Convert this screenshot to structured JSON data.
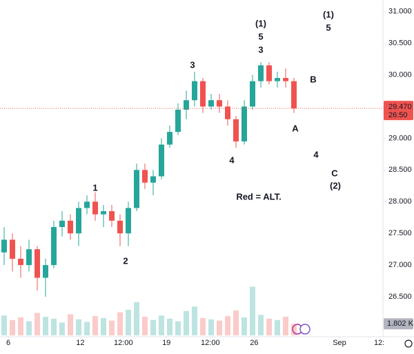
{
  "chart_data": {
    "type": "candlestick",
    "x": [
      0,
      1,
      2,
      3,
      4,
      5,
      6,
      7,
      8,
      9,
      10,
      11,
      12,
      13,
      14,
      15,
      16,
      17,
      18,
      19,
      20,
      21,
      22,
      23,
      24,
      25,
      26,
      27,
      28,
      29,
      30,
      31,
      32,
      33,
      34,
      35
    ],
    "open": [
      27.2,
      27.4,
      27.1,
      27.0,
      27.25,
      26.8,
      27.0,
      27.6,
      27.7,
      27.5,
      27.9,
      28.0,
      27.8,
      27.85,
      27.7,
      27.5,
      27.9,
      28.5,
      28.3,
      28.4,
      28.9,
      29.1,
      29.45,
      29.6,
      29.9,
      29.5,
      29.6,
      29.5,
      29.3,
      28.95,
      29.5,
      29.9,
      30.15,
      29.9,
      29.95,
      29.9
    ],
    "high": [
      27.6,
      27.5,
      27.3,
      27.4,
      27.3,
      27.1,
      27.7,
      27.85,
      27.8,
      28.0,
      28.1,
      28.15,
      27.95,
      27.95,
      27.8,
      28.0,
      28.6,
      28.6,
      28.5,
      29.0,
      29.2,
      29.55,
      29.75,
      30.05,
      29.95,
      29.7,
      29.7,
      29.6,
      29.35,
      29.6,
      30.0,
      30.2,
      30.2,
      30.05,
      30.1,
      29.95
    ],
    "low": [
      27.0,
      26.9,
      26.8,
      26.9,
      26.6,
      26.5,
      26.95,
      27.45,
      27.4,
      27.3,
      27.8,
      27.7,
      27.6,
      27.6,
      27.3,
      27.3,
      27.85,
      28.2,
      28.1,
      28.35,
      28.85,
      29.05,
      29.3,
      29.5,
      29.4,
      29.45,
      29.4,
      29.2,
      28.85,
      28.9,
      29.45,
      29.8,
      29.85,
      29.8,
      29.8,
      29.4
    ],
    "close": [
      27.4,
      27.1,
      27.0,
      27.25,
      26.8,
      27.0,
      27.6,
      27.7,
      27.5,
      27.9,
      28.0,
      27.8,
      27.85,
      27.7,
      27.5,
      27.9,
      28.5,
      28.3,
      28.4,
      28.9,
      29.1,
      29.45,
      29.6,
      29.9,
      29.5,
      29.6,
      29.5,
      29.3,
      28.95,
      29.5,
      29.9,
      30.15,
      29.9,
      29.95,
      29.9,
      29.47
    ],
    "volume": [
      3.1,
      2.4,
      2.8,
      2.2,
      3.5,
      2.9,
      2.6,
      2.0,
      3.3,
      2.5,
      2.1,
      3.0,
      2.7,
      2.3,
      3.6,
      4.0,
      5.2,
      2.9,
      2.4,
      3.1,
      2.6,
      2.2,
      3.8,
      4.5,
      2.7,
      2.5,
      2.3,
      3.0,
      3.9,
      2.8,
      7.6,
      3.2,
      2.6,
      2.4,
      2.9,
      1.802
    ],
    "volume_lim": [
      0,
      14
    ],
    "volume_label": "1.802 K",
    "up_color": "#26a69a",
    "down_color": "#ef5350",
    "xlim": [
      -0.5,
      45.75
    ],
    "xticks": [
      {
        "value": 0.5,
        "label": "6"
      },
      {
        "value": 9.2,
        "label": "12"
      },
      {
        "value": 14.4,
        "label": "12:00"
      },
      {
        "value": 19.6,
        "label": "19"
      },
      {
        "value": 24.9,
        "label": "12:00"
      },
      {
        "value": 30.2,
        "label": "26"
      },
      {
        "value": 40.5,
        "label": "Sep"
      },
      {
        "value": 45.3,
        "label": "12:"
      }
    ],
    "ylim": [
      25.87,
      31.18
    ],
    "yticks": [
      {
        "value": 26.5,
        "label": "26.500"
      },
      {
        "value": 27,
        "label": "27.000"
      },
      {
        "value": 27.5,
        "label": "27.500"
      },
      {
        "value": 28,
        "label": "28.000"
      },
      {
        "value": 28.5,
        "label": "28.500"
      },
      {
        "value": 29,
        "label": "29.000"
      },
      {
        "value": 29.5,
        "label": "29.500"
      },
      {
        "value": 30,
        "label": "30.000"
      },
      {
        "value": 30.5,
        "label": "30.500"
      },
      {
        "value": 31,
        "label": "31.000"
      }
    ],
    "last_price": {
      "value": 29.47,
      "label": "29.470"
    },
    "countdown": "26:50",
    "grid": false,
    "annotations": [
      {
        "text": "(1)",
        "color": "#e53935"
      },
      {
        "text": "5",
        "color": "#e53935"
      },
      {
        "text": "3",
        "color": "#131722"
      },
      {
        "text": "(1)",
        "color": "#131722"
      },
      {
        "text": "5",
        "color": "#131722"
      },
      {
        "text": "3",
        "color": "#e53935"
      },
      {
        "text": "B",
        "color": "#e53935"
      },
      {
        "text": "A",
        "color": "#e53935"
      },
      {
        "text": "4",
        "color": "#131722"
      },
      {
        "text": "4",
        "color": "#e53935"
      },
      {
        "text": "C",
        "color": "#e53935"
      },
      {
        "text": "(2)",
        "color": "#e53935"
      },
      {
        "text": "1",
        "color": "#131722"
      },
      {
        "text": "2",
        "color": "#131722"
      },
      {
        "text": "Red = ALT.",
        "color": "#e53935"
      }
    ]
  }
}
